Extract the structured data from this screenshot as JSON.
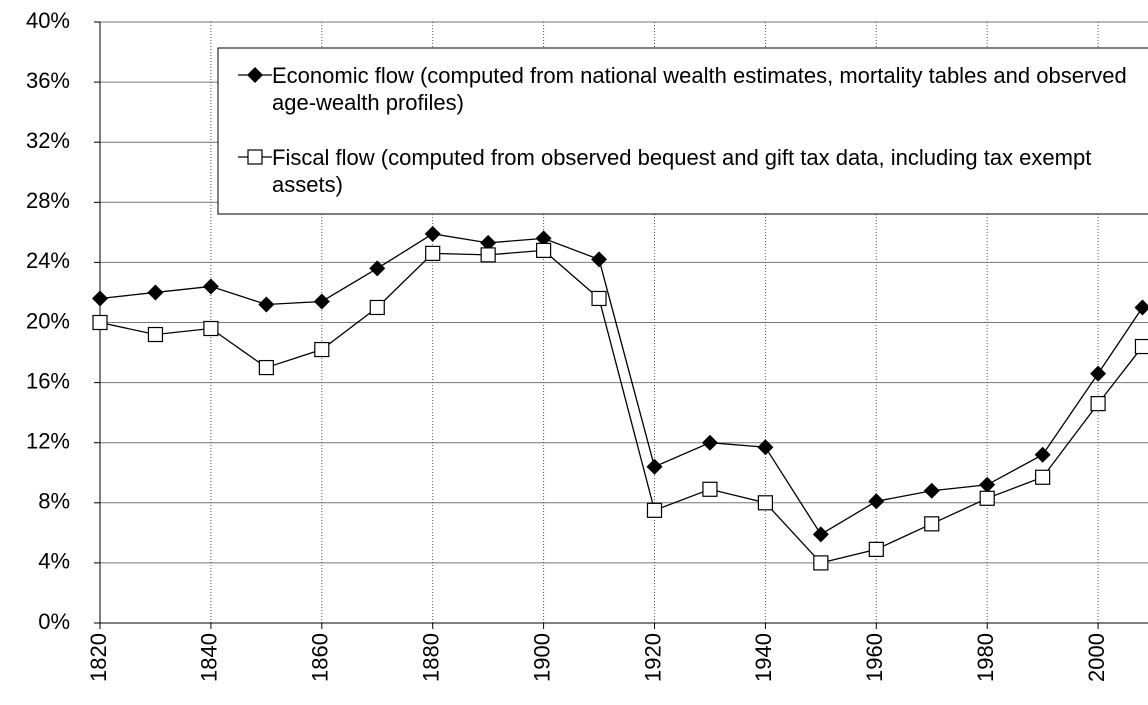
{
  "chart_data": {
    "type": "line",
    "x": [
      1820,
      1830,
      1840,
      1850,
      1860,
      1870,
      1880,
      1890,
      1900,
      1910,
      1920,
      1930,
      1940,
      1950,
      1960,
      1970,
      1980,
      1990,
      2000,
      2008
    ],
    "series": [
      {
        "name": "Economic flow (computed from national wealth estimates, mortality tables and observed age-wealth profiles)",
        "color": "#000000",
        "marker": "diamond",
        "values": [
          21.6,
          22.0,
          22.4,
          21.2,
          21.4,
          23.6,
          25.9,
          25.3,
          25.6,
          24.2,
          10.4,
          12.0,
          11.7,
          5.9,
          8.1,
          8.8,
          9.2,
          11.2,
          16.6,
          21.0
        ]
      },
      {
        "name": "Fiscal flow (computed from observed bequest and gift tax data, including tax exempt assets)",
        "color": "#000000",
        "marker": "square",
        "values": [
          20.0,
          19.2,
          19.6,
          17.0,
          18.2,
          21.0,
          24.6,
          24.5,
          24.8,
          21.6,
          7.5,
          8.9,
          8.0,
          4.0,
          4.9,
          6.6,
          8.3,
          9.7,
          14.6,
          18.4
        ]
      }
    ],
    "xlim": [
      1820,
      2009
    ],
    "xticks": [
      1820,
      1840,
      1860,
      1880,
      1900,
      1920,
      1940,
      1960,
      1980,
      2000
    ],
    "ylim": [
      0,
      40
    ],
    "yticks": [
      {
        "value": 0,
        "label": "0%"
      },
      {
        "value": 4,
        "label": "4%"
      },
      {
        "value": 8,
        "label": "8%"
      },
      {
        "value": 12,
        "label": "12%"
      },
      {
        "value": 16,
        "label": "16%"
      },
      {
        "value": 20,
        "label": "20%"
      },
      {
        "value": 24,
        "label": "24%"
      },
      {
        "value": 28,
        "label": "28%"
      },
      {
        "value": 32,
        "label": "32%"
      },
      {
        "value": 36,
        "label": "36%"
      },
      {
        "value": 40,
        "label": "40%"
      }
    ],
    "grid": true
  }
}
